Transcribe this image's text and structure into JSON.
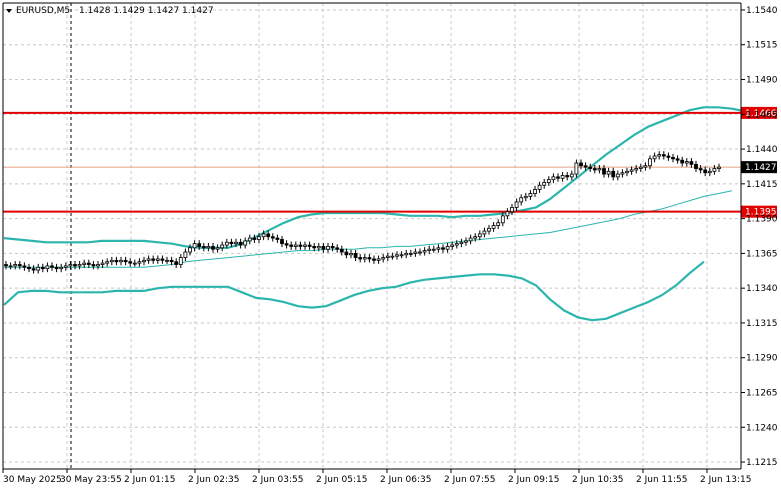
{
  "header": {
    "symbol": "EURUSD,M5",
    "ohlc": "1.1428 1.1429 1.1427 1.1427"
  },
  "colors": {
    "background": "#ffffff",
    "grid": "#c8c8c8",
    "axis": "#000000",
    "candle": "#000000",
    "bands": "#2bb5ad",
    "middle_band": "#2bb5ad",
    "level_line": "#e00000",
    "price_line": "#e0a080",
    "price_tag_bg": "#000000",
    "price_tag_fg": "#ffffff",
    "level_tag_bg": "#e00000",
    "level_tag_fg": "#ffffff"
  },
  "chart_data": {
    "type": "candlestick",
    "instrument": "EURUSD",
    "timeframe": "M5",
    "ylim": [
      1.121,
      1.1545
    ],
    "y_ticks": [
      "1.1540",
      "1.1515",
      "1.1490",
      "1.1465",
      "1.1440",
      "1.1415",
      "1.1390",
      "1.1365",
      "1.1340",
      "1.1315",
      "1.1290",
      "1.1265",
      "1.1240",
      "1.1215"
    ],
    "x_ticks": [
      "30 May 2025",
      "30 May 23:55",
      "2 Jun 01:15",
      "2 Jun 02:35",
      "2 Jun 03:55",
      "2 Jun 05:15",
      "2 Jun 06:35",
      "2 Jun 07:55",
      "2 Jun 09:15",
      "2 Jun 10:35",
      "2 Jun 11:55",
      "2 Jun 13:15"
    ],
    "levels": [
      {
        "price": 1.1466,
        "label": "1.1466"
      },
      {
        "price": 1.1395,
        "label": "1.1395"
      }
    ],
    "current_price": {
      "price": 1.1427,
      "label": "1.1427"
    },
    "session_separator_index": 1,
    "closes": [
      1.1356,
      1.1356,
      1.1357,
      1.1356,
      1.1355,
      1.1354,
      1.1353,
      1.1355,
      1.1354,
      1.1356,
      1.1355,
      1.1354,
      1.1355,
      1.1356,
      1.1357,
      1.1356,
      1.1357,
      1.1358,
      1.1357,
      1.1356,
      1.1357,
      1.1358,
      1.1359,
      1.136,
      1.1359,
      1.136,
      1.1359,
      1.1358,
      1.1358,
      1.1359,
      1.136,
      1.1361,
      1.136,
      1.1361,
      1.136,
      1.136,
      1.1359,
      1.1357,
      1.1362,
      1.1366,
      1.1369,
      1.1372,
      1.137,
      1.1369,
      1.137,
      1.1368,
      1.1369,
      1.1371,
      1.1373,
      1.1372,
      1.1373,
      1.1371,
      1.1374,
      1.1376,
      1.1375,
      1.1377,
      1.1379,
      1.1377,
      1.1376,
      1.1375,
      1.1372,
      1.1371,
      1.137,
      1.1371,
      1.137,
      1.1371,
      1.137,
      1.1369,
      1.137,
      1.1368,
      1.137,
      1.1369,
      1.1368,
      1.1366,
      1.1364,
      1.1365,
      1.1362,
      1.1361,
      1.1362,
      1.1361,
      1.136,
      1.1361,
      1.1362,
      1.1363,
      1.1363,
      1.1364,
      1.1364,
      1.1365,
      1.1365,
      1.1366,
      1.1366,
      1.1367,
      1.1368,
      1.1368,
      1.1369,
      1.1368,
      1.137,
      1.1371,
      1.1372,
      1.1373,
      1.1374,
      1.1376,
      1.1377,
      1.1379,
      1.1381,
      1.1383,
      1.1385,
      1.1387,
      1.1392,
      1.1395,
      1.1398,
      1.1402,
      1.1405,
      1.1406,
      1.1408,
      1.1411,
      1.1414,
      1.1416,
      1.1418,
      1.142,
      1.1419,
      1.1421,
      1.142,
      1.1422,
      1.143,
      1.1428,
      1.1427,
      1.1426,
      1.1425,
      1.1426,
      1.1422,
      1.1424,
      1.142,
      1.1422,
      1.1423,
      1.1424,
      1.1425,
      1.1426,
      1.1427,
      1.1428,
      1.1433,
      1.1435,
      1.1436,
      1.1435,
      1.1434,
      1.1433,
      1.1432,
      1.143,
      1.1431,
      1.1429,
      1.1426,
      1.1425,
      1.1423,
      1.1424,
      1.1426,
      1.1427
    ],
    "upper_band": [
      1.1376,
      1.1375,
      1.1374,
      1.1373,
      1.1373,
      1.1373,
      1.1373,
      1.1374,
      1.1374,
      1.1374,
      1.1374,
      1.1373,
      1.1372,
      1.137,
      1.1369,
      1.1369,
      1.1369,
      1.1372,
      1.1377,
      1.1382,
      1.1387,
      1.1391,
      1.1393,
      1.1394,
      1.1394,
      1.1394,
      1.1394,
      1.1394,
      1.1393,
      1.1392,
      1.1392,
      1.1392,
      1.1391,
      1.1392,
      1.1392,
      1.1393,
      1.1394,
      1.1396,
      1.1398,
      1.1404,
      1.1412,
      1.142,
      1.1428,
      1.1436,
      1.1443,
      1.145,
      1.1456,
      1.146,
      1.1464,
      1.1468,
      1.147,
      1.147,
      1.1469,
      1.1467
    ],
    "middle_band": [
      1.1355,
      1.1355,
      1.1355,
      1.1355,
      1.1355,
      1.1355,
      1.1355,
      1.1355,
      1.1355,
      1.1355,
      1.1355,
      1.1356,
      1.1357,
      1.1359,
      1.136,
      1.1361,
      1.1362,
      1.1363,
      1.1364,
      1.1365,
      1.1366,
      1.1367,
      1.1367,
      1.1368,
      1.1368,
      1.1368,
      1.1369,
      1.1369,
      1.137,
      1.137,
      1.1371,
      1.1372,
      1.1373,
      1.1374,
      1.1375,
      1.1376,
      1.1377,
      1.1378,
      1.1379,
      1.138,
      1.1382,
      1.1384,
      1.1386,
      1.1388,
      1.139,
      1.1393,
      1.1395,
      1.1397,
      1.14,
      1.1403,
      1.1406,
      1.1408,
      1.141
    ],
    "lower_band": [
      1.1328,
      1.1337,
      1.1338,
      1.1338,
      1.1337,
      1.1337,
      1.1337,
      1.1337,
      1.1338,
      1.1338,
      1.1338,
      1.134,
      1.1341,
      1.1341,
      1.1341,
      1.1341,
      1.1341,
      1.1337,
      1.1333,
      1.1332,
      1.133,
      1.1327,
      1.1326,
      1.1327,
      1.1331,
      1.1335,
      1.1338,
      1.134,
      1.1341,
      1.1344,
      1.1346,
      1.1347,
      1.1348,
      1.1349,
      1.135,
      1.135,
      1.1349,
      1.1347,
      1.1342,
      1.1332,
      1.1324,
      1.1319,
      1.1317,
      1.1318,
      1.1322,
      1.1326,
      1.133,
      1.1335,
      1.1342,
      1.1351,
      1.1359
    ]
  }
}
